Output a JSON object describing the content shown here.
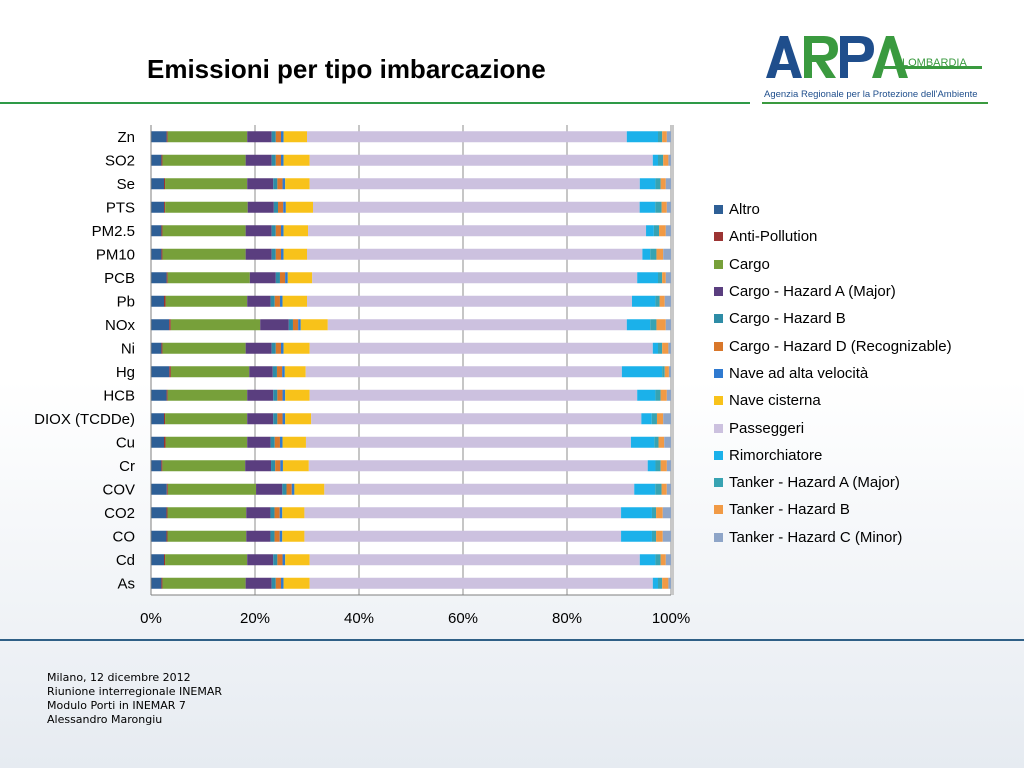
{
  "title": "Emissioni per tipo imbarcazione",
  "logo": {
    "brand": "ARPA",
    "region": "LOMBARDIA",
    "subtitle": "Agenzia Regionale per la Protezione dell'Ambiente",
    "colors": {
      "blue": "#1f4e8c",
      "green": "#3a9a3f"
    }
  },
  "footer": {
    "line1": "Milano, 12 dicembre 2012",
    "line2": "Riunione interregionale INEMAR",
    "line3": "Modulo Porti in INEMAR 7",
    "line4": "Alessandro Marongiu"
  },
  "chart_data": {
    "type": "bar",
    "orientation": "horizontal",
    "stacked": "percent",
    "title": "",
    "xlabel": "",
    "ylabel": "",
    "xlim": [
      0,
      100
    ],
    "x_ticks": [
      "0%",
      "20%",
      "40%",
      "60%",
      "80%",
      "100%"
    ],
    "grid": true,
    "legend_position": "right",
    "categories": [
      "Zn",
      "SO2",
      "Se",
      "PTS",
      "PM2.5",
      "PM10",
      "PCB",
      "Pb",
      "NOx",
      "Ni",
      "Hg",
      "HCB",
      "DIOX (TCDDe)",
      "Cu",
      "Cr",
      "COV",
      "CO2",
      "CO",
      "Cd",
      "As"
    ],
    "series": [
      {
        "name": "Altro",
        "color": "#2e5f96",
        "values": [
          3,
          2,
          2.5,
          2.5,
          2,
          2,
          3,
          2.5,
          3.5,
          2,
          3.5,
          3,
          2.5,
          2.5,
          2,
          3,
          3,
          3,
          2.5,
          2
        ]
      },
      {
        "name": "Anti-Pollution",
        "color": "#9c3433",
        "values": [
          0.2,
          0.2,
          0.2,
          0.2,
          0.2,
          0.2,
          0.2,
          0.3,
          0.3,
          0.2,
          0.3,
          0.2,
          0.2,
          0.3,
          0.2,
          0.2,
          0.2,
          0.2,
          0.2,
          0.2
        ]
      },
      {
        "name": "Cargo",
        "color": "#77a03a",
        "values": [
          15.3,
          16,
          15.8,
          15.8,
          16,
          16,
          15.8,
          15.7,
          17.2,
          16,
          15,
          15.3,
          15.8,
          15.7,
          16,
          16.8,
          15.3,
          15.3,
          15.8,
          16
        ]
      },
      {
        "name": "Cargo - Hazard A (Major)",
        "color": "#5a3e7f",
        "values": [
          4.7,
          5,
          5,
          5,
          5,
          5,
          5,
          4.5,
          5.5,
          5,
          4.5,
          5,
          5,
          4.5,
          5,
          5,
          4.7,
          4.7,
          5,
          5
        ]
      },
      {
        "name": "Cargo - Hazard B",
        "color": "#2e8ca6",
        "values": [
          0.8,
          0.8,
          0.8,
          0.8,
          0.8,
          0.8,
          0.8,
          0.8,
          0.8,
          0.8,
          0.8,
          0.8,
          0.8,
          0.8,
          0.8,
          0.8,
          0.8,
          0.8,
          0.8,
          0.8
        ]
      },
      {
        "name": "Cargo - Hazard D (Recognizable)",
        "color": "#d9772a",
        "values": [
          1,
          1,
          1,
          1,
          1,
          1,
          1,
          1,
          1,
          1,
          1,
          1,
          1,
          1,
          1,
          1,
          1,
          1,
          1,
          1
        ]
      },
      {
        "name": "Nave ad alta velocità",
        "color": "#2f7ad0",
        "values": [
          0.5,
          0.5,
          0.5,
          0.5,
          0.5,
          0.5,
          0.5,
          0.5,
          0.5,
          0.5,
          0.5,
          0.5,
          0.5,
          0.5,
          0.5,
          0.5,
          0.5,
          0.5,
          0.5,
          0.5
        ]
      },
      {
        "name": "Nave cisterna",
        "color": "#f8c21a",
        "values": [
          4.5,
          5,
          4.7,
          5.2,
          4.7,
          4.5,
          4.7,
          4.7,
          5.2,
          5,
          4,
          4.7,
          5,
          4.5,
          5,
          5.7,
          4.3,
          4.3,
          4.7,
          5
        ]
      },
      {
        "name": "Passeggeri",
        "color": "#ccc1df",
        "values": [
          61.5,
          66,
          63.5,
          62.5,
          65,
          64.5,
          62.5,
          62.5,
          57.5,
          66,
          60.5,
          63,
          63.5,
          62.5,
          65.5,
          59,
          61.5,
          61.5,
          63.5,
          66
        ]
      },
      {
        "name": "Rimorchiatore",
        "color": "#1bb1ea",
        "values": [
          6,
          1,
          3,
          3,
          1.5,
          1.5,
          4,
          4.5,
          4.5,
          1,
          7.7,
          3.5,
          2,
          4.5,
          1.5,
          4,
          6,
          6,
          3,
          1
        ]
      },
      {
        "name": "Tanker - Hazard A (Major)",
        "color": "#37a3b2",
        "values": [
          0.8,
          1,
          1,
          1.2,
          1,
          1.2,
          0.8,
          0.8,
          1.2,
          0.8,
          0.5,
          1,
          1,
          0.8,
          1,
          1.2,
          0.8,
          0.8,
          1,
          0.8
        ]
      },
      {
        "name": "Tanker - Hazard B",
        "color": "#f19a45",
        "values": [
          0.9,
          1,
          1,
          1,
          1.3,
          1.3,
          0.7,
          1,
          1.8,
          1.2,
          0.8,
          1.2,
          1.2,
          1.1,
          1.2,
          1,
          1.3,
          1.3,
          1,
          1.2
        ]
      },
      {
        "name": "Tanker - Hazard C (Minor)",
        "color": "#8ea5c8",
        "values": [
          0.8,
          0.5,
          1,
          0.8,
          1,
          1.5,
          1,
          1.2,
          1,
          0.5,
          0.4,
          0.8,
          1.5,
          1.3,
          0.8,
          0.8,
          1.6,
          1.6,
          1,
          0.5
        ]
      }
    ]
  }
}
